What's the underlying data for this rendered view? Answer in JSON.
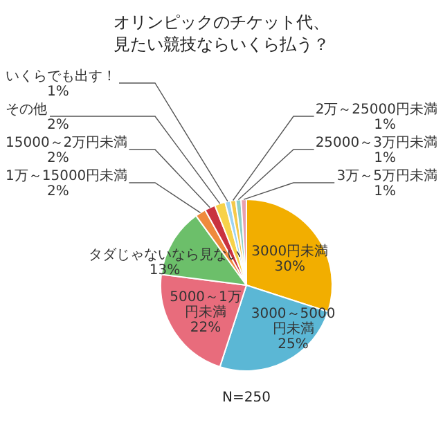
{
  "chart_data": {
    "type": "pie",
    "title": "オリンピックのチケット代、見たい競技ならいくら払う？",
    "categories": [
      "3000円未満",
      "3000～5000円未満",
      "5000～1万円未満",
      "タダじゃないなら見ない",
      "1万～15000円未満",
      "15000～2万円未満",
      "その他",
      "いくらでも出す！",
      "2万～25000円未満",
      "25000～3万円未満",
      "3万～5万円未満"
    ],
    "values": [
      30,
      25,
      22,
      13,
      2,
      2,
      2,
      1,
      1,
      1,
      1
    ],
    "colors": [
      "#f2ae00",
      "#5bb7d5",
      "#e86c7c",
      "#6cbf6a",
      "#ef8a3c",
      "#c9323f",
      "#f7d24a",
      "#9dd3f2",
      "#f6c94a",
      "#8fd0c8",
      "#e9a0b0"
    ],
    "value_labels": [
      "30%",
      "25%",
      "22%",
      "13%",
      "2%",
      "2%",
      "2%",
      "1%",
      "1%",
      "1%",
      "1%"
    ],
    "annotations": [
      "N=250"
    ]
  }
}
